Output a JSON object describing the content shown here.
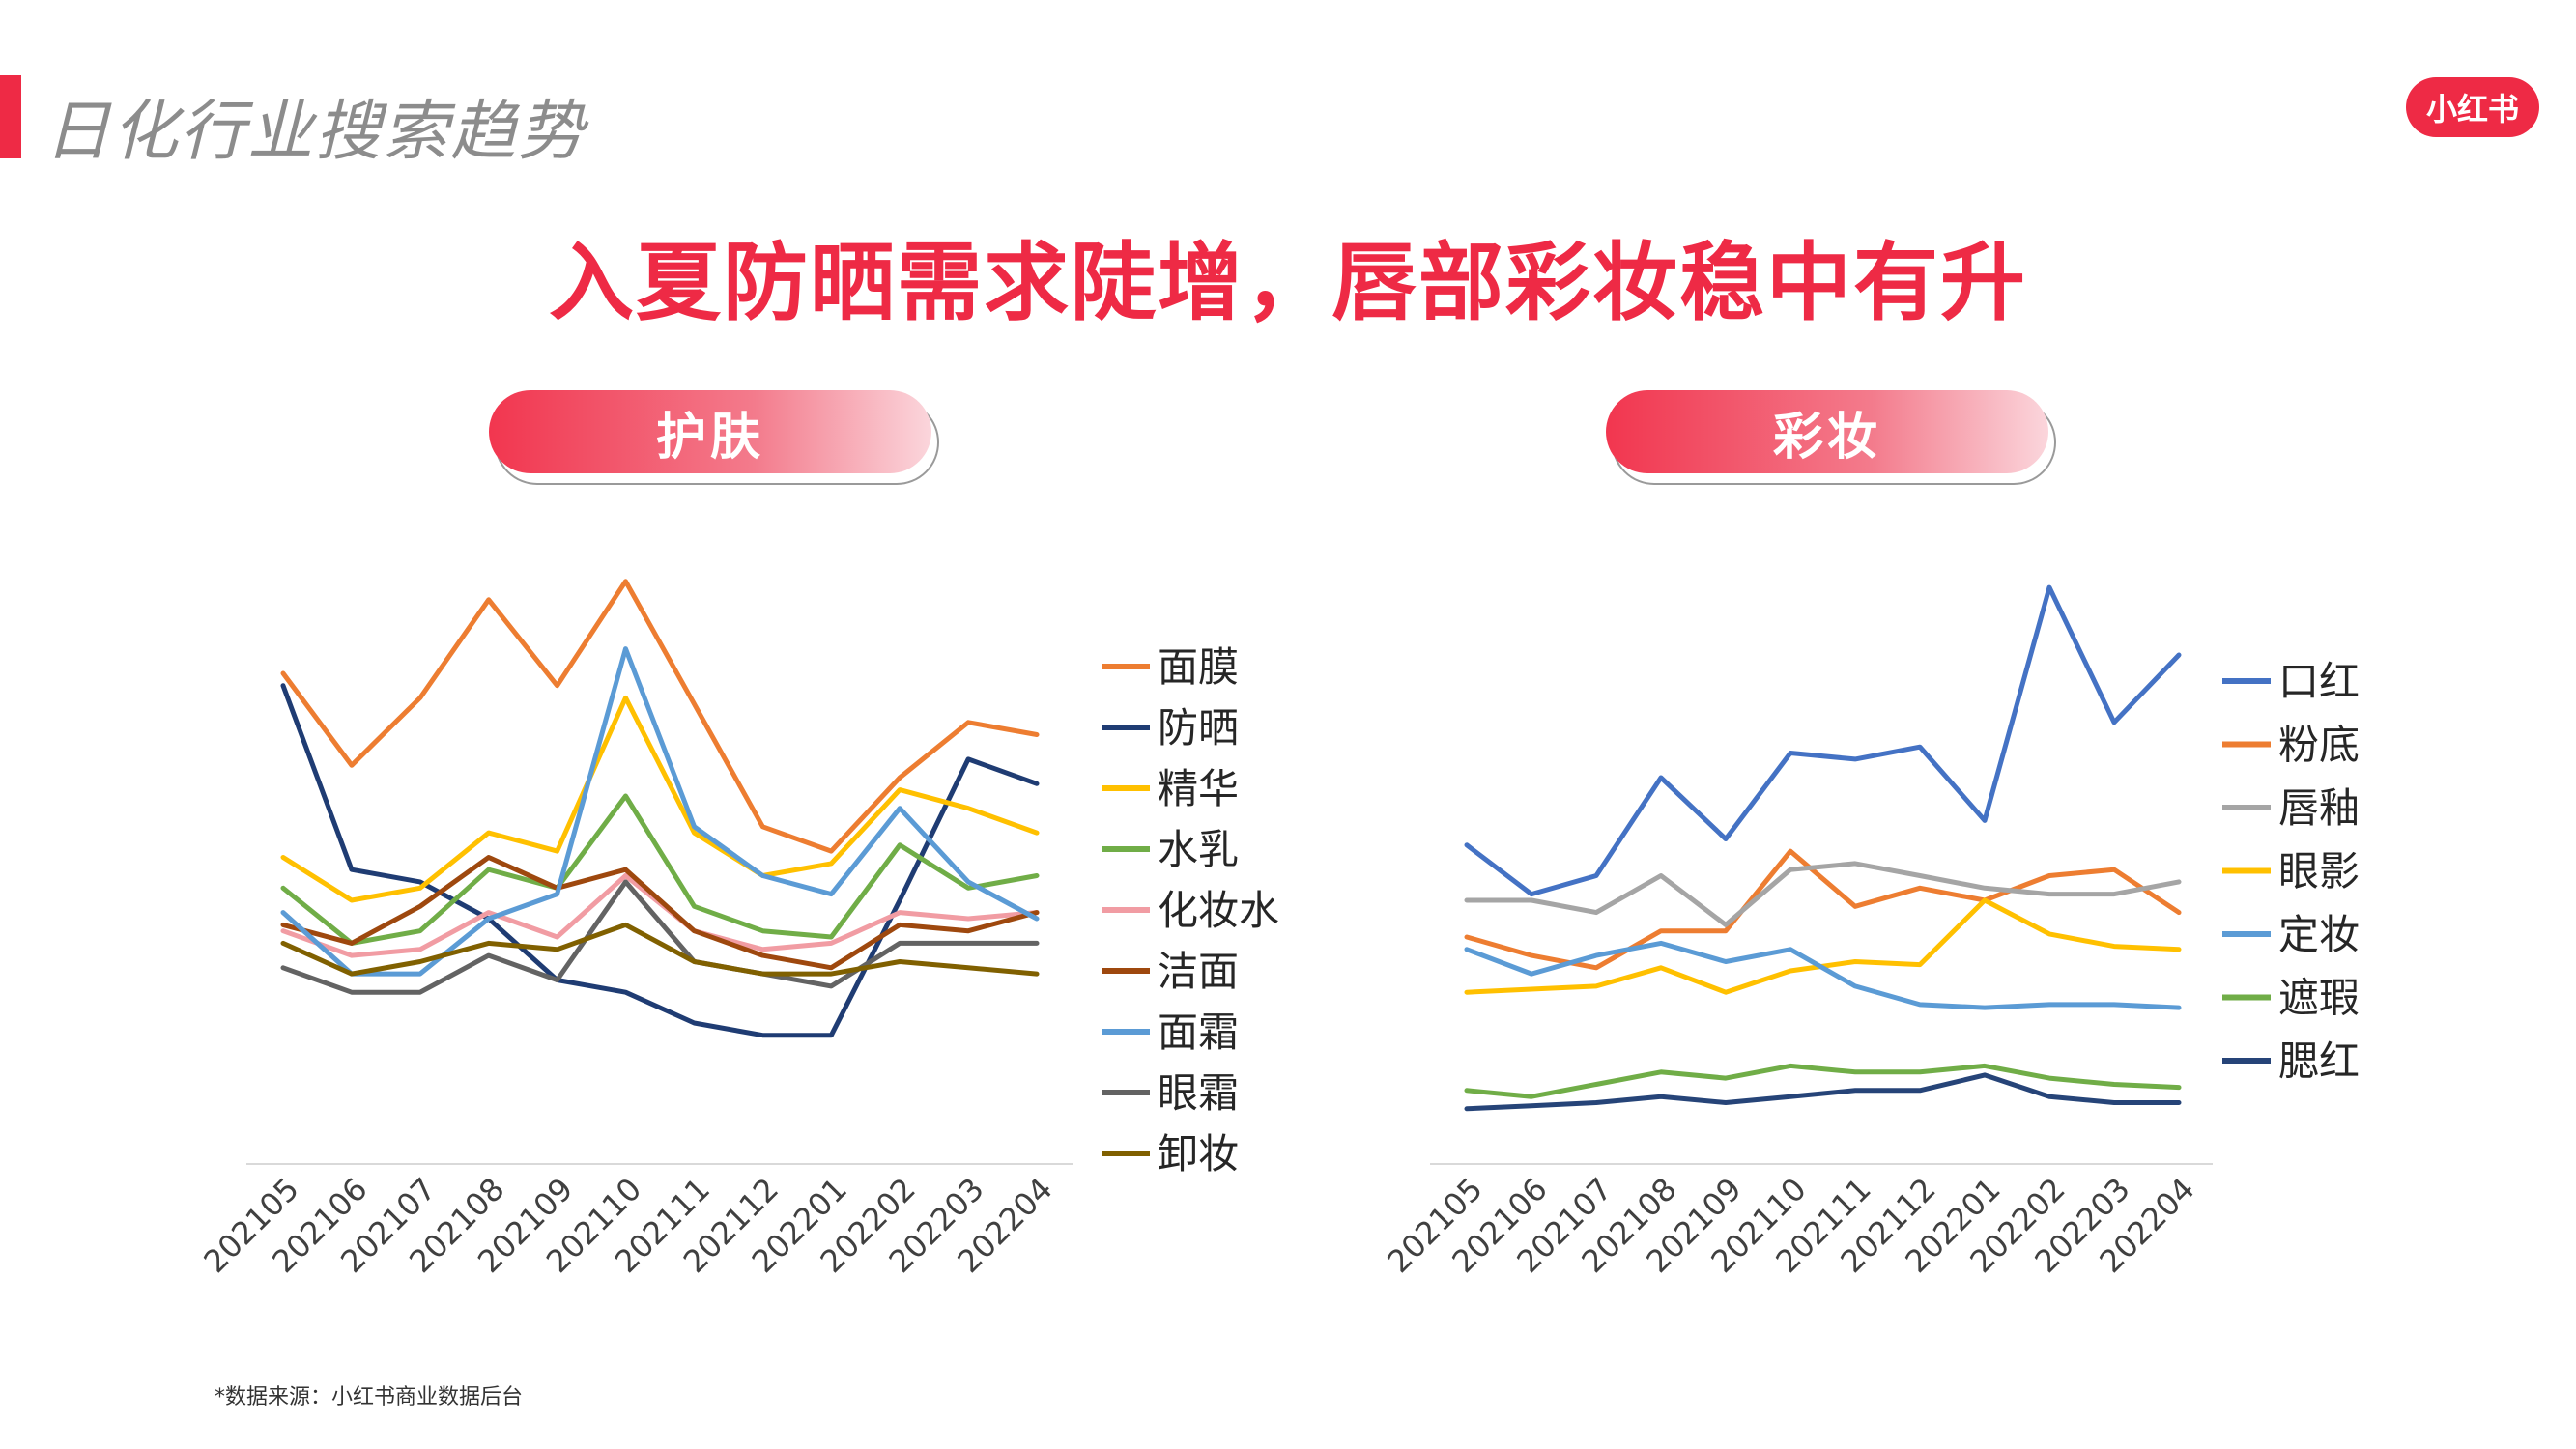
{
  "header": {
    "title": "日化行业搜索趋势",
    "logo_text": "小红书"
  },
  "headline": "入夏防晒需求陡增，唇部彩妆稳中有升",
  "source": "*数据来源：小红书商业数据后台",
  "colors": {
    "accent": "#ee2a45"
  },
  "chart_data": [
    {
      "type": "line",
      "title": "护肤",
      "x": [
        "202105",
        "202106",
        "202107",
        "202108",
        "202109",
        "202110",
        "202111",
        "202112",
        "202201",
        "202202",
        "202203",
        "202204"
      ],
      "grid": false,
      "legend_position": "right",
      "series": [
        {
          "name": "面膜",
          "color": "#ed7d31",
          "values": [
            80,
            65,
            76,
            92,
            78,
            95,
            75,
            55,
            51,
            63,
            72,
            70
          ]
        },
        {
          "name": "防晒",
          "color": "#1f3c73",
          "values": [
            78,
            48,
            46,
            40,
            30,
            28,
            23,
            21,
            21,
            43,
            66,
            62
          ]
        },
        {
          "name": "精华",
          "color": "#ffc000",
          "values": [
            50,
            43,
            45,
            54,
            51,
            76,
            54,
            47,
            49,
            61,
            58,
            54
          ]
        },
        {
          "name": "水乳",
          "color": "#70ad47",
          "values": [
            45,
            36,
            38,
            48,
            45,
            60,
            42,
            38,
            37,
            52,
            45,
            47
          ]
        },
        {
          "name": "化妆水",
          "color": "#f19ca3",
          "values": [
            38,
            34,
            35,
            41,
            37,
            47,
            38,
            35,
            36,
            41,
            40,
            41
          ]
        },
        {
          "name": "洁面",
          "color": "#9e480e",
          "values": [
            39,
            36,
            42,
            50,
            45,
            48,
            38,
            34,
            32,
            39,
            38,
            41
          ]
        },
        {
          "name": "面霜",
          "color": "#5b9bd5",
          "values": [
            41,
            31,
            31,
            40,
            44,
            84,
            55,
            47,
            44,
            58,
            46,
            40
          ]
        },
        {
          "name": "眼霜",
          "color": "#636363",
          "values": [
            32,
            28,
            28,
            34,
            30,
            46,
            33,
            31,
            29,
            36,
            36,
            36
          ]
        },
        {
          "name": "卸妆",
          "color": "#806000",
          "values": [
            36,
            31,
            33,
            36,
            35,
            39,
            33,
            31,
            31,
            33,
            32,
            31
          ]
        }
      ]
    },
    {
      "type": "line",
      "title": "彩妆",
      "x": [
        "202105",
        "202106",
        "202107",
        "202108",
        "202109",
        "202110",
        "202111",
        "202112",
        "202201",
        "202202",
        "202203",
        "202204"
      ],
      "grid": false,
      "legend_position": "right",
      "series": [
        {
          "name": "口红",
          "color": "#4472c4",
          "values": [
            52,
            44,
            47,
            63,
            53,
            67,
            66,
            68,
            56,
            94,
            72,
            83
          ]
        },
        {
          "name": "粉底",
          "color": "#ed7d31",
          "values": [
            37,
            34,
            32,
            38,
            38,
            51,
            42,
            45,
            43,
            47,
            48,
            41
          ]
        },
        {
          "name": "唇釉",
          "color": "#a5a5a5",
          "values": [
            43,
            43,
            41,
            47,
            39,
            48,
            49,
            47,
            45,
            44,
            44,
            46
          ]
        },
        {
          "name": "眼影",
          "color": "#ffc000",
          "values": [
            28,
            28.5,
            29,
            32,
            28,
            31.5,
            33,
            32.5,
            43,
            37.5,
            35.5,
            35
          ]
        },
        {
          "name": "定妆",
          "color": "#5b9bd5",
          "values": [
            35,
            31,
            34,
            36,
            33,
            35,
            29,
            26,
            25.5,
            26,
            26,
            25.5
          ]
        },
        {
          "name": "遮瑕",
          "color": "#70ad47",
          "values": [
            12,
            11,
            13,
            15,
            14,
            16,
            15,
            15,
            16,
            14,
            13,
            12.5
          ]
        },
        {
          "name": "腮红",
          "color": "#264478",
          "values": [
            9,
            9.5,
            10,
            11,
            10,
            11,
            12,
            12,
            14.5,
            11,
            10,
            10
          ]
        }
      ]
    }
  ]
}
